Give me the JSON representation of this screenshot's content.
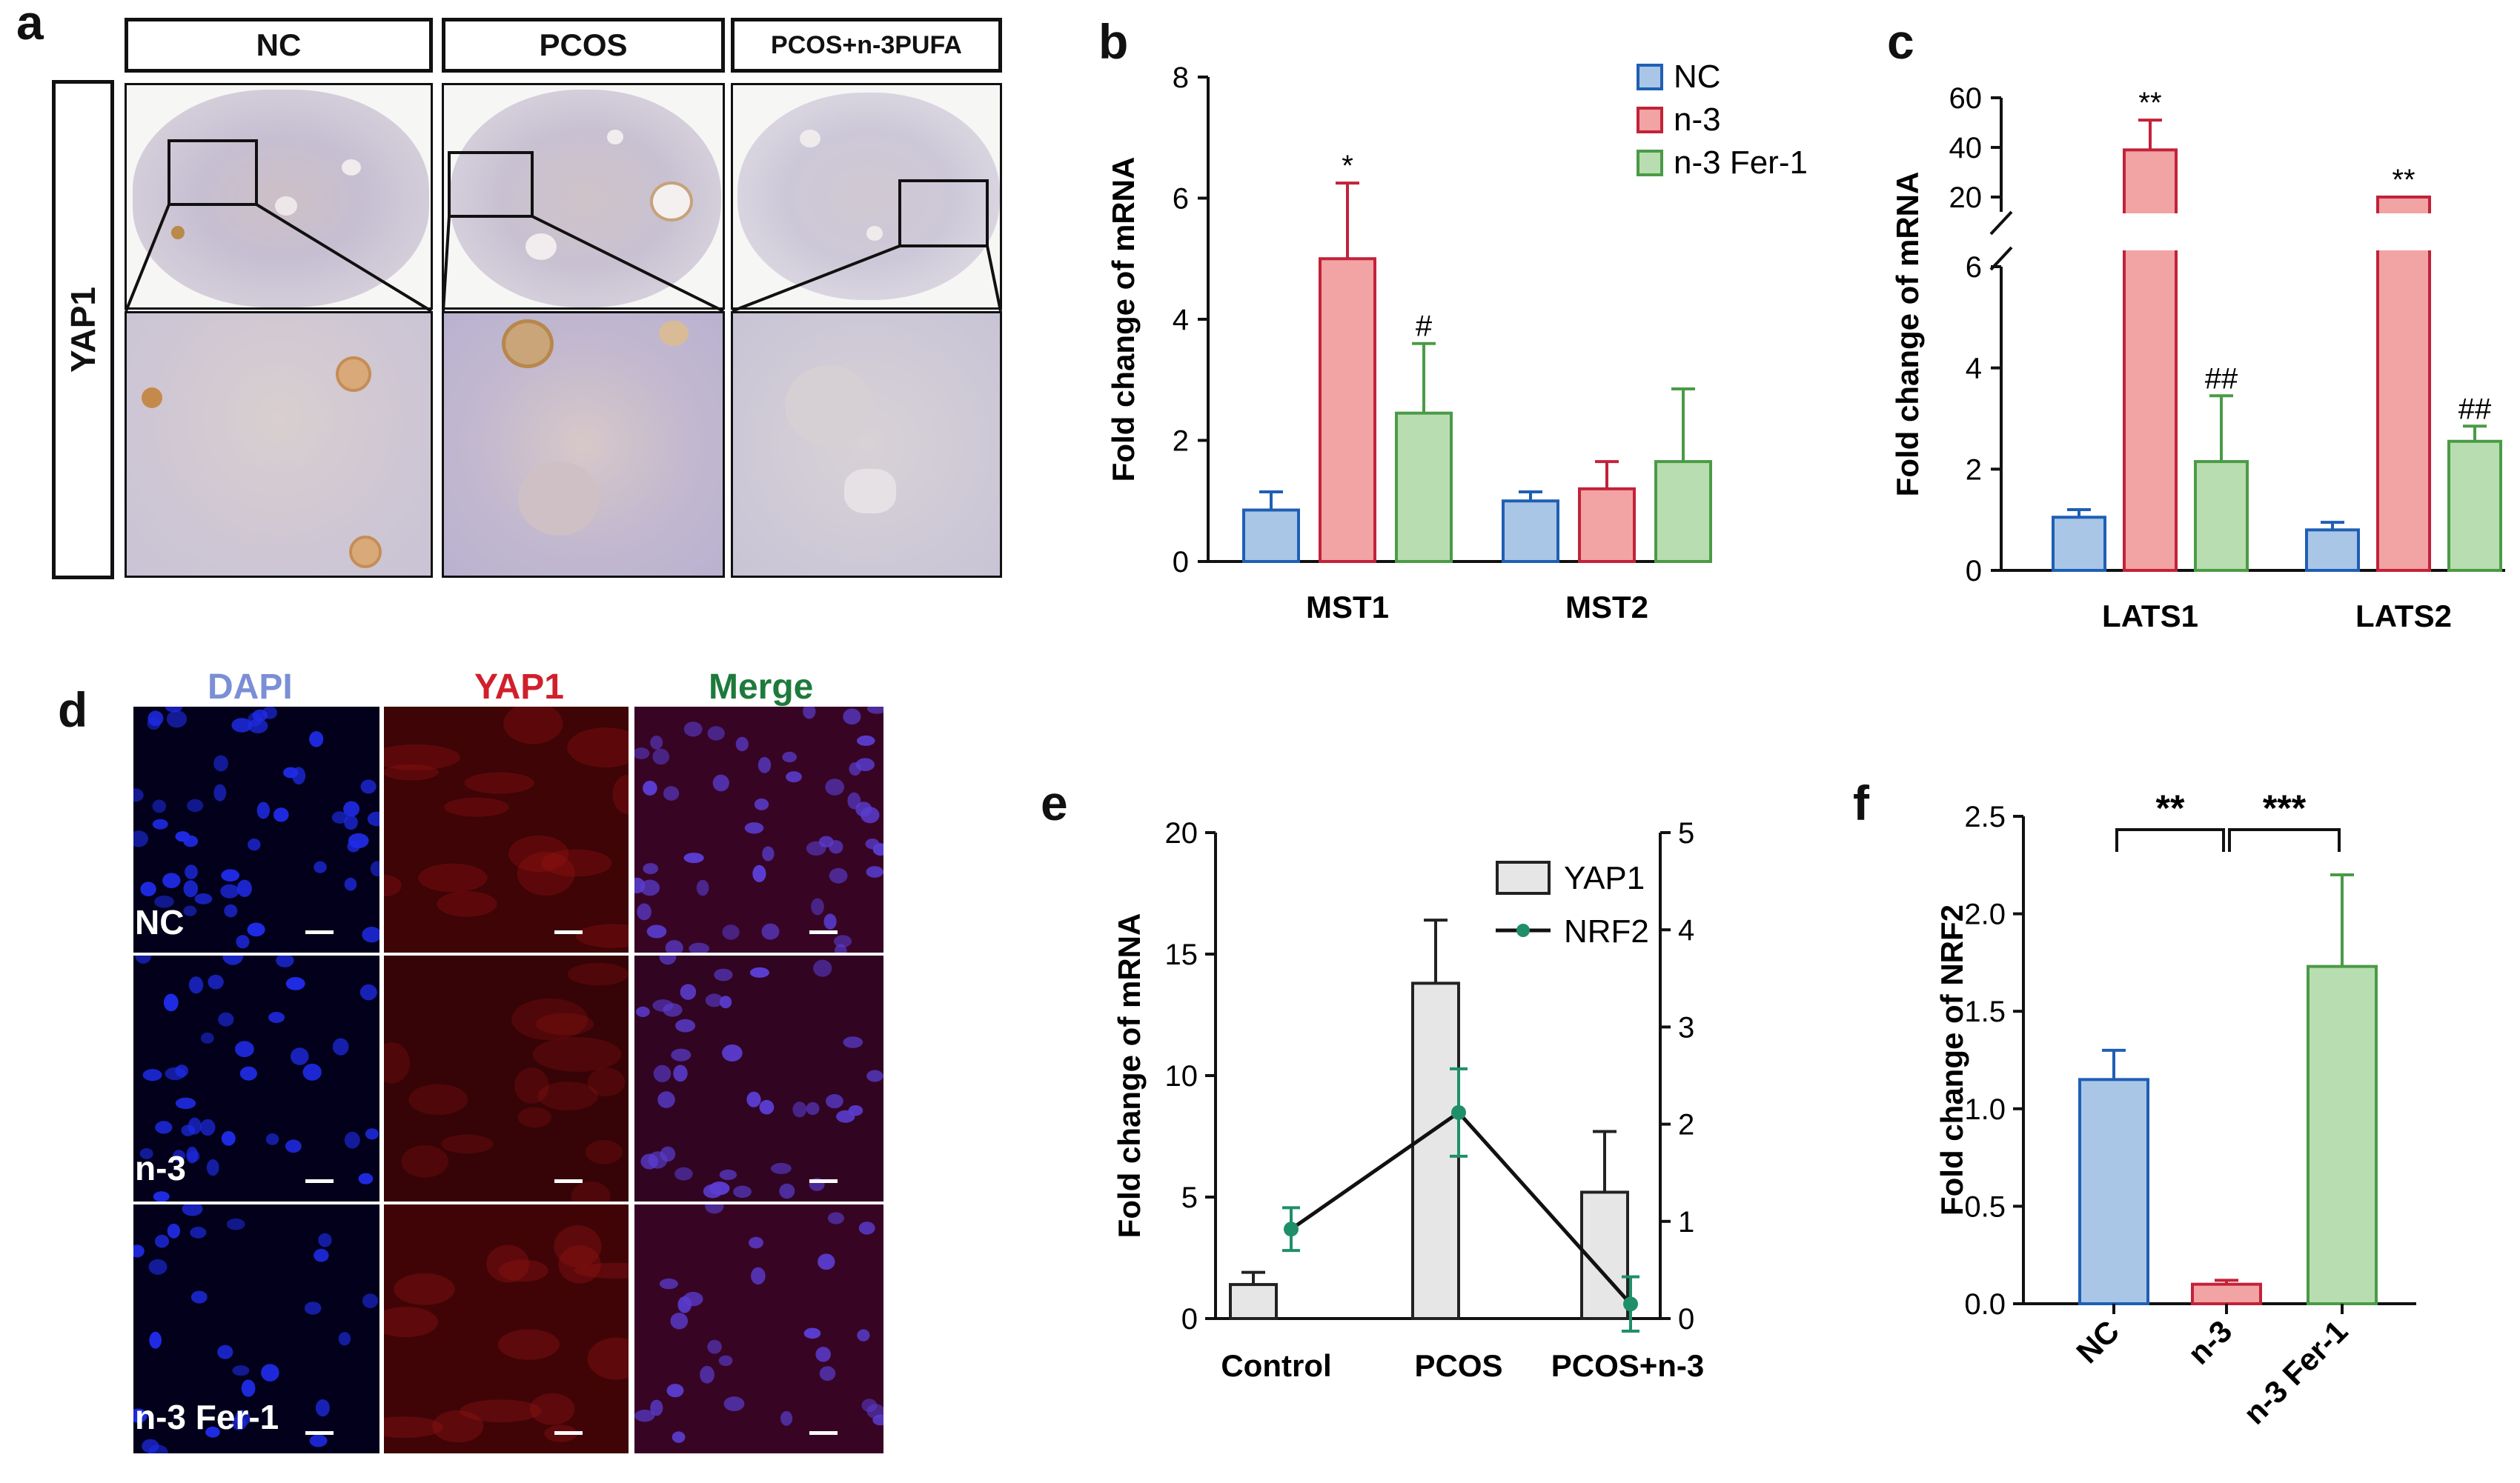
{
  "panel_letters": {
    "a": "a",
    "b": "b",
    "c": "c",
    "d": "d",
    "e": "e",
    "f": "f"
  },
  "panel_a": {
    "headers": [
      "NC",
      "PCOS",
      "PCOS+n-3PUFA"
    ],
    "row_label": "YAP1"
  },
  "panel_d": {
    "column_headers": [
      {
        "label": "DAPI",
        "color": "#7b8fd6"
      },
      {
        "label": "YAP1",
        "color": "#d0202c"
      },
      {
        "label": "Merge",
        "color": "#1e7a3c"
      }
    ],
    "row_labels": [
      "NC",
      "n-3",
      "n-3 Fer-1"
    ]
  },
  "colors": {
    "nc_fill": "#a9c6e6",
    "nc_edge": "#1f5fb4",
    "n3_fill": "#f2a3a3",
    "n3_edge": "#c2223a",
    "fer_fill": "#b8ddb0",
    "fer_edge": "#4a9b46",
    "yap1_fill": "#e6e6e6",
    "line": "#111111",
    "nrf2_point": "#1f8f6a"
  },
  "chart_data": [
    {
      "panel": "b",
      "type": "bar",
      "categories": [
        "MST1",
        "MST2"
      ],
      "ylabel": "Fold change of mRNA",
      "ylim": [
        0,
        8
      ],
      "yticks": [
        "0",
        "2",
        "4",
        "6",
        "8"
      ],
      "legend_position": "top-right",
      "series": [
        {
          "name": "NC",
          "values": [
            0.85,
            1.0
          ],
          "errors": [
            0.3,
            0.15
          ]
        },
        {
          "name": "n-3",
          "values": [
            5.0,
            1.2
          ],
          "errors": [
            1.25,
            0.45
          ]
        },
        {
          "name": "n-3 Fer-1",
          "values": [
            2.45,
            1.65
          ],
          "errors": [
            1.15,
            1.2
          ]
        }
      ],
      "annotations": [
        {
          "series": 1,
          "category": 0,
          "text": "*"
        },
        {
          "series": 2,
          "category": 0,
          "text": "#"
        }
      ]
    },
    {
      "panel": "c",
      "type": "bar",
      "categories": [
        "LATS1",
        "LATS2"
      ],
      "ylabel": "Fold change of mRNA",
      "axis_break": true,
      "lower_ylim": [
        0,
        6
      ],
      "upper_ylim": [
        20,
        60
      ],
      "lower_ticks": [
        "0",
        "2",
        "4",
        "6"
      ],
      "upper_ticks": [
        "20",
        "40",
        "60"
      ],
      "series": [
        {
          "name": "NC",
          "values": [
            1.05,
            0.8
          ],
          "errors": [
            0.15,
            0.15
          ]
        },
        {
          "name": "n-3",
          "values": [
            39,
            13
          ],
          "errors": [
            12,
            3
          ]
        },
        {
          "name": "n-3 Fer-1",
          "values": [
            2.15,
            2.55
          ],
          "errors": [
            1.3,
            0.3
          ]
        }
      ],
      "annotations": [
        {
          "series": 1,
          "category": 0,
          "text": "**"
        },
        {
          "series": 2,
          "category": 0,
          "text": "##"
        },
        {
          "series": 1,
          "category": 1,
          "text": "**"
        },
        {
          "series": 2,
          "category": 1,
          "text": "##"
        }
      ]
    },
    {
      "panel": "e",
      "type": "bar",
      "categories": [
        "Control",
        "PCOS",
        "PCOS+n-3"
      ],
      "ylabel": "Fold change of mRNA",
      "ylim": [
        0,
        20
      ],
      "yticks": [
        "0",
        "5",
        "10",
        "15",
        "20"
      ],
      "y2lim": [
        0,
        5
      ],
      "y2ticks": [
        "0",
        "1",
        "2",
        "3",
        "4",
        "5"
      ],
      "legend_position": "top-right",
      "series": [
        {
          "name": "YAP1",
          "kind": "bar",
          "axis": "left",
          "values": [
            1.4,
            13.8,
            5.2
          ],
          "errors": [
            0.5,
            2.6,
            2.5
          ]
        },
        {
          "name": "NRF2",
          "kind": "line",
          "axis": "right",
          "values": [
            0.92,
            2.12,
            0.15
          ],
          "errors": [
            0.22,
            0.45,
            0.28
          ]
        }
      ]
    },
    {
      "panel": "f",
      "type": "bar",
      "categories": [
        "NC",
        "n-3",
        "n-3 Fer-1"
      ],
      "ylabel": "Fold change of NRF2",
      "ylim": [
        0,
        2.5
      ],
      "yticks": [
        "0.0",
        "0.5",
        "1.0",
        "1.5",
        "2.0",
        "2.5"
      ],
      "series": [
        {
          "name": "",
          "values": [
            1.15,
            0.1,
            1.73
          ],
          "errors": [
            0.15,
            0.02,
            0.47
          ]
        }
      ],
      "significance": [
        {
          "from": 0,
          "to": 1,
          "text": "**"
        },
        {
          "from": 1,
          "to": 2,
          "text": "***"
        }
      ]
    }
  ]
}
